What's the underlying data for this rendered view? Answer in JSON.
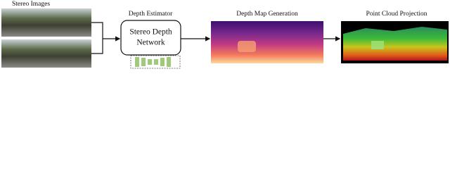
{
  "nodes": [
    {
      "label": "Stereo Images"
    },
    {
      "label": "Depth Estimator"
    },
    {
      "label": [
        "Stereo Depth",
        "Network"
      ]
    },
    {
      "label": "Depth Map Generation"
    },
    {
      "label": "Point Cloud Projection"
    }
  ]
}
